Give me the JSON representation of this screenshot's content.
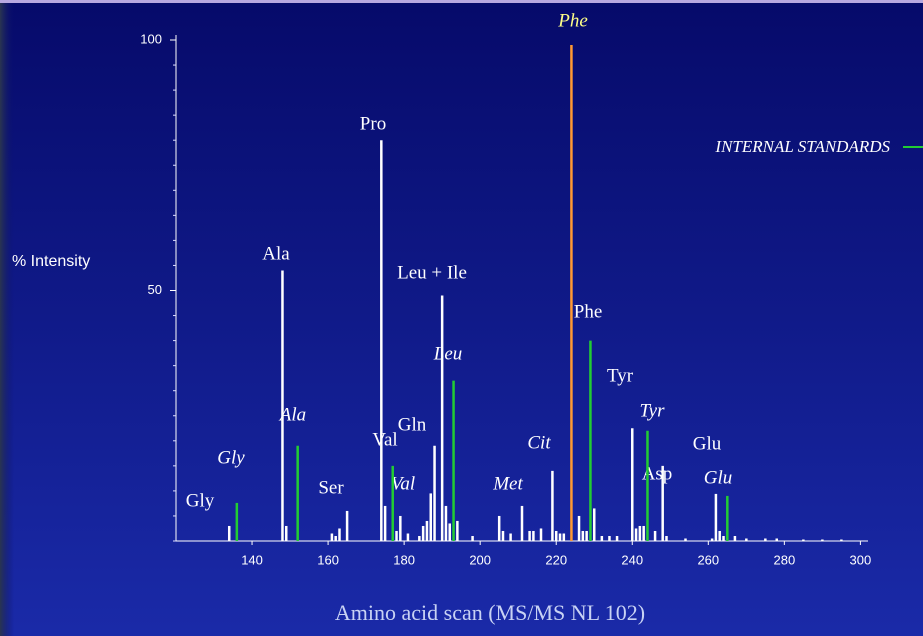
{
  "chart_data": {
    "type": "stick",
    "title": "Amino acid scan (MS/MS NL 102)",
    "y_label": "% Intensity",
    "xlim": [
      120,
      302
    ],
    "ylim": [
      0,
      100
    ],
    "xticks": [
      140,
      160,
      180,
      200,
      220,
      240,
      260,
      280,
      300
    ],
    "yticks": [
      50,
      100
    ],
    "series": [
      {
        "color": "#ffffff",
        "x": [
          134,
          148,
          149,
          161,
          162,
          163,
          165,
          174,
          175,
          178,
          179,
          181,
          184,
          185,
          186,
          187,
          188,
          190,
          191,
          192,
          194,
          198,
          205,
          206,
          208,
          211,
          213,
          214,
          216,
          219,
          220,
          221,
          222,
          226,
          227,
          228,
          230,
          232,
          234,
          236,
          240,
          241,
          242,
          243,
          246,
          248,
          249,
          254,
          261,
          262,
          263,
          264,
          267,
          270,
          275,
          278,
          285,
          290,
          295
        ],
        "values": [
          3,
          54,
          3,
          1.5,
          1,
          2.5,
          6,
          80,
          7,
          2,
          5,
          1.5,
          1,
          3,
          4,
          9.5,
          19,
          49,
          7,
          3.5,
          4,
          1,
          5,
          2,
          1.5,
          7,
          2,
          2,
          2.5,
          14,
          2,
          1.5,
          1.5,
          5,
          2,
          2,
          6.5,
          1,
          1,
          1,
          22.5,
          2.5,
          3,
          3,
          2,
          15,
          1,
          0.5,
          0.5,
          9.4,
          2,
          1,
          1,
          0.5,
          0.5,
          0.5,
          0.3,
          0.3,
          0.3
        ]
      },
      {
        "name": "INTERNAL STANDARDS",
        "color": "#22cc33",
        "x": [
          136,
          152,
          177,
          193,
          229,
          244,
          265
        ],
        "values": [
          7.6,
          19,
          15,
          32,
          40,
          22,
          9
        ]
      },
      {
        "color": "#ff9933",
        "x": [
          224
        ],
        "values": [
          99
        ]
      }
    ],
    "labels": [
      "Phe",
      "Pro",
      "Ala",
      "Leu + Ile",
      "Phe",
      "Leu",
      "Tyr",
      "Ala",
      "Tyr",
      "Gln",
      "Val",
      "Cit",
      "Glu",
      "Gly",
      "Asp",
      "Met",
      "Val",
      "Glu",
      "Ser",
      "Gly"
    ]
  }
}
